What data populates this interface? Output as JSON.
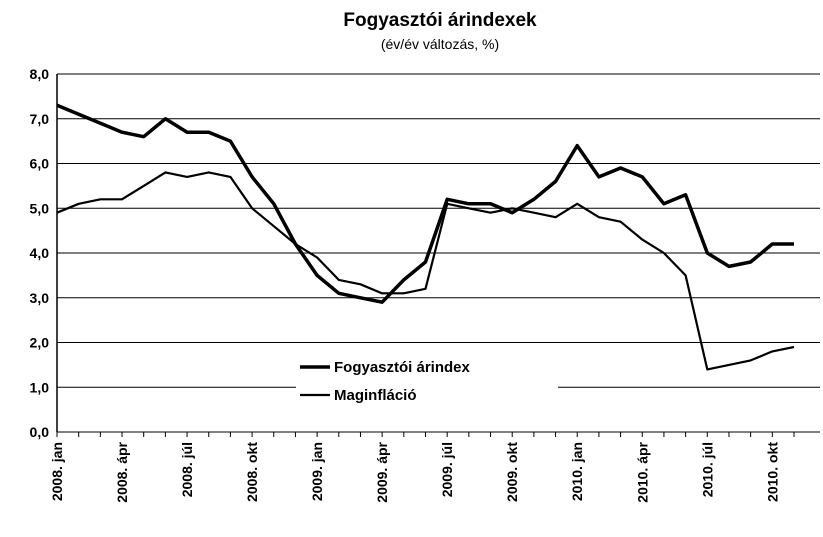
{
  "chart_data": {
    "type": "line",
    "title": "Fogyasztói árindexek",
    "subtitle": "(év/év változás, %)",
    "categories": [
      "2008. jan",
      null,
      null,
      "2008. ápr",
      null,
      null,
      "2008. júl",
      null,
      null,
      "2008. okt",
      null,
      null,
      "2009. jan",
      null,
      null,
      "2009. ápr",
      null,
      null,
      "2009. júl",
      null,
      null,
      "2009. okt",
      null,
      null,
      "2010. jan",
      null,
      null,
      "2010. ápr",
      null,
      null,
      "2010. júl",
      null,
      null,
      "2010. okt",
      null
    ],
    "series": [
      {
        "name": "Fogyasztói árindex",
        "color": "#000000",
        "values": [
          7.3,
          7.1,
          6.9,
          6.7,
          6.6,
          7.0,
          6.7,
          6.7,
          6.5,
          5.7,
          5.1,
          4.2,
          3.5,
          3.1,
          3.0,
          2.9,
          3.4,
          3.8,
          5.2,
          5.1,
          5.1,
          4.9,
          5.2,
          5.6,
          6.4,
          5.7,
          5.9,
          5.7,
          5.1,
          5.3,
          4.0,
          3.7,
          3.8,
          4.2,
          4.2
        ]
      },
      {
        "name": "Maginfláció",
        "color": "#000000",
        "values": [
          4.9,
          5.1,
          5.2,
          5.2,
          5.5,
          5.8,
          5.7,
          5.8,
          5.7,
          5.0,
          4.6,
          4.2,
          3.9,
          3.4,
          3.3,
          3.1,
          3.1,
          3.2,
          5.1,
          5.0,
          4.9,
          5.0,
          4.9,
          4.8,
          5.1,
          4.8,
          4.7,
          4.3,
          4.0,
          3.5,
          1.4,
          1.5,
          1.6,
          1.8,
          1.9
        ]
      }
    ],
    "ylim": [
      0,
      8
    ],
    "yticks": [
      {
        "value": 0,
        "label": "0,0"
      },
      {
        "value": 1,
        "label": "1,0"
      },
      {
        "value": 2,
        "label": "2,0"
      },
      {
        "value": 3,
        "label": "3,0"
      },
      {
        "value": 4,
        "label": "4,0"
      },
      {
        "value": 5,
        "label": "5,0"
      },
      {
        "value": 6,
        "label": "6,0"
      },
      {
        "value": 7,
        "label": "7,0"
      },
      {
        "value": 8,
        "label": "8,0"
      }
    ],
    "grid": true
  }
}
